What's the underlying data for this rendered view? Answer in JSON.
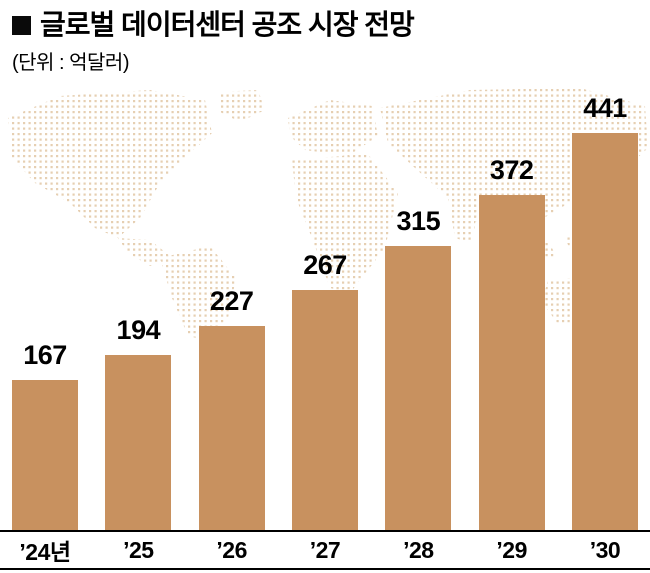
{
  "header": {
    "title": "글로벌 데이터센터 공조 시장 전망",
    "unit": "(단위 : 억달러)"
  },
  "chart_data": {
    "type": "bar",
    "title": "글로벌 데이터센터 공조 시장 전망",
    "unit_label": "(단위 : 억달러)",
    "categories": [
      "’24년",
      "’25",
      "’26",
      "’27",
      "’28",
      "’29",
      "’30"
    ],
    "values": [
      167,
      194,
      227,
      267,
      315,
      372,
      441
    ],
    "ylim": [
      0,
      460
    ],
    "grid": false,
    "legend": "none",
    "bar_color": "#c8915f",
    "map_dot_color": "#e6cfb2",
    "axis_line_color": "#000000"
  }
}
